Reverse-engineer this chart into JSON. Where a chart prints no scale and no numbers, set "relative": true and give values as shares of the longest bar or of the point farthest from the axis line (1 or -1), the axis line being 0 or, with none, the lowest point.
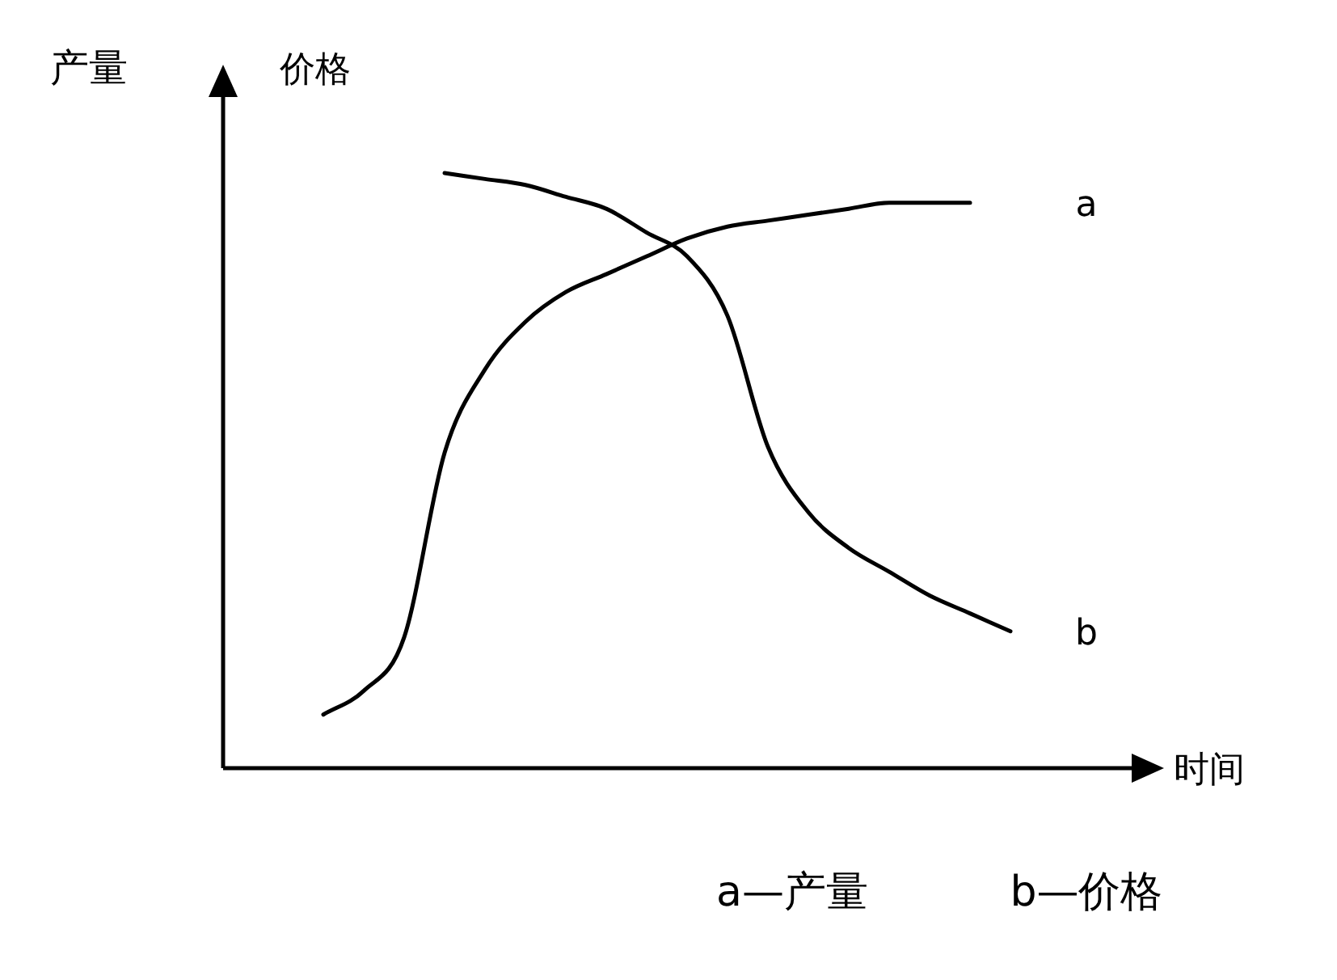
{
  "chart_data": {
    "type": "line",
    "relative": true,
    "xlabel": "时间",
    "ylabel": "产量",
    "y2label": "价格",
    "categories": [
      null,
      null,
      null,
      null,
      null,
      null,
      null,
      null,
      null,
      null,
      null,
      null,
      null,
      null,
      null,
      null,
      null,
      null
    ],
    "series": [
      {
        "name": "a",
        "color": "#000000",
        "values": [
          0.09,
          0.13,
          0.22,
          0.53,
          0.67,
          0.75,
          0.8,
          0.83,
          0.86,
          0.89,
          0.91,
          0.92,
          0.93,
          0.94,
          0.95,
          0.95,
          0.95,
          null
        ]
      },
      {
        "name": "b",
        "color": "#000000",
        "values": [
          null,
          null,
          null,
          1.0,
          0.99,
          0.98,
          0.96,
          0.94,
          0.9,
          0.86,
          0.76,
          0.54,
          0.43,
          0.37,
          0.33,
          0.29,
          0.26,
          0.23
        ]
      }
    ],
    "legend": false,
    "annotations": [
      "a—产量",
      "b—价格"
    ]
  }
}
